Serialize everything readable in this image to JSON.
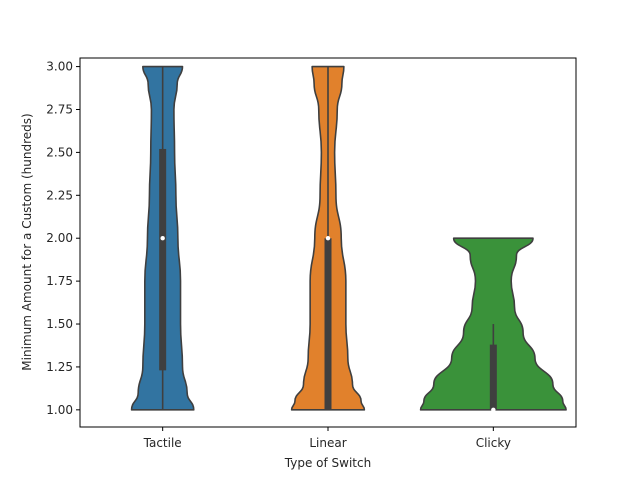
{
  "chart_data": {
    "type": "violin",
    "xlabel": "Type of Switch",
    "ylabel": "Minimum Amount for a Custom (hundreds)",
    "ylim": [
      0.9,
      3.05
    ],
    "yticks": [
      "1.00",
      "1.25",
      "1.50",
      "1.75",
      "2.00",
      "2.25",
      "2.50",
      "2.75",
      "3.00"
    ],
    "categories": [
      "Tactile",
      "Linear",
      "Clicky"
    ],
    "series": [
      {
        "category": "Tactile",
        "color": "#3274a1",
        "min": 1.0,
        "q1": 1.23,
        "median": 2.0,
        "q3": 2.52,
        "max": 3.0,
        "density": [
          [
            1.0,
            0.47
          ],
          [
            1.1,
            0.37
          ],
          [
            1.25,
            0.3
          ],
          [
            1.5,
            0.27
          ],
          [
            1.75,
            0.27
          ],
          [
            2.0,
            0.23
          ],
          [
            2.25,
            0.2
          ],
          [
            2.5,
            0.18
          ],
          [
            2.75,
            0.17
          ],
          [
            2.9,
            0.22
          ],
          [
            3.0,
            0.3
          ]
        ]
      },
      {
        "category": "Linear",
        "color": "#e1812c",
        "min": 1.0,
        "q1": 1.0,
        "median": 2.0,
        "q3": 2.0,
        "max": 3.0,
        "density": [
          [
            1.0,
            0.55
          ],
          [
            1.05,
            0.5
          ],
          [
            1.15,
            0.37
          ],
          [
            1.3,
            0.3
          ],
          [
            1.5,
            0.27
          ],
          [
            1.75,
            0.27
          ],
          [
            2.0,
            0.2
          ],
          [
            2.25,
            0.12
          ],
          [
            2.5,
            0.1
          ],
          [
            2.75,
            0.14
          ],
          [
            2.9,
            0.21
          ],
          [
            3.0,
            0.24
          ]
        ]
      },
      {
        "category": "Clicky",
        "color": "#3a923a",
        "min": 1.0,
        "q1": 1.0,
        "median": 1.0,
        "q3": 1.38,
        "max": 1.5,
        "density": [
          [
            1.0,
            1.1
          ],
          [
            1.05,
            1.05
          ],
          [
            1.15,
            0.9
          ],
          [
            1.3,
            0.63
          ],
          [
            1.45,
            0.45
          ],
          [
            1.6,
            0.32
          ],
          [
            1.75,
            0.27
          ],
          [
            1.9,
            0.35
          ],
          [
            2.0,
            0.6
          ]
        ]
      }
    ]
  }
}
